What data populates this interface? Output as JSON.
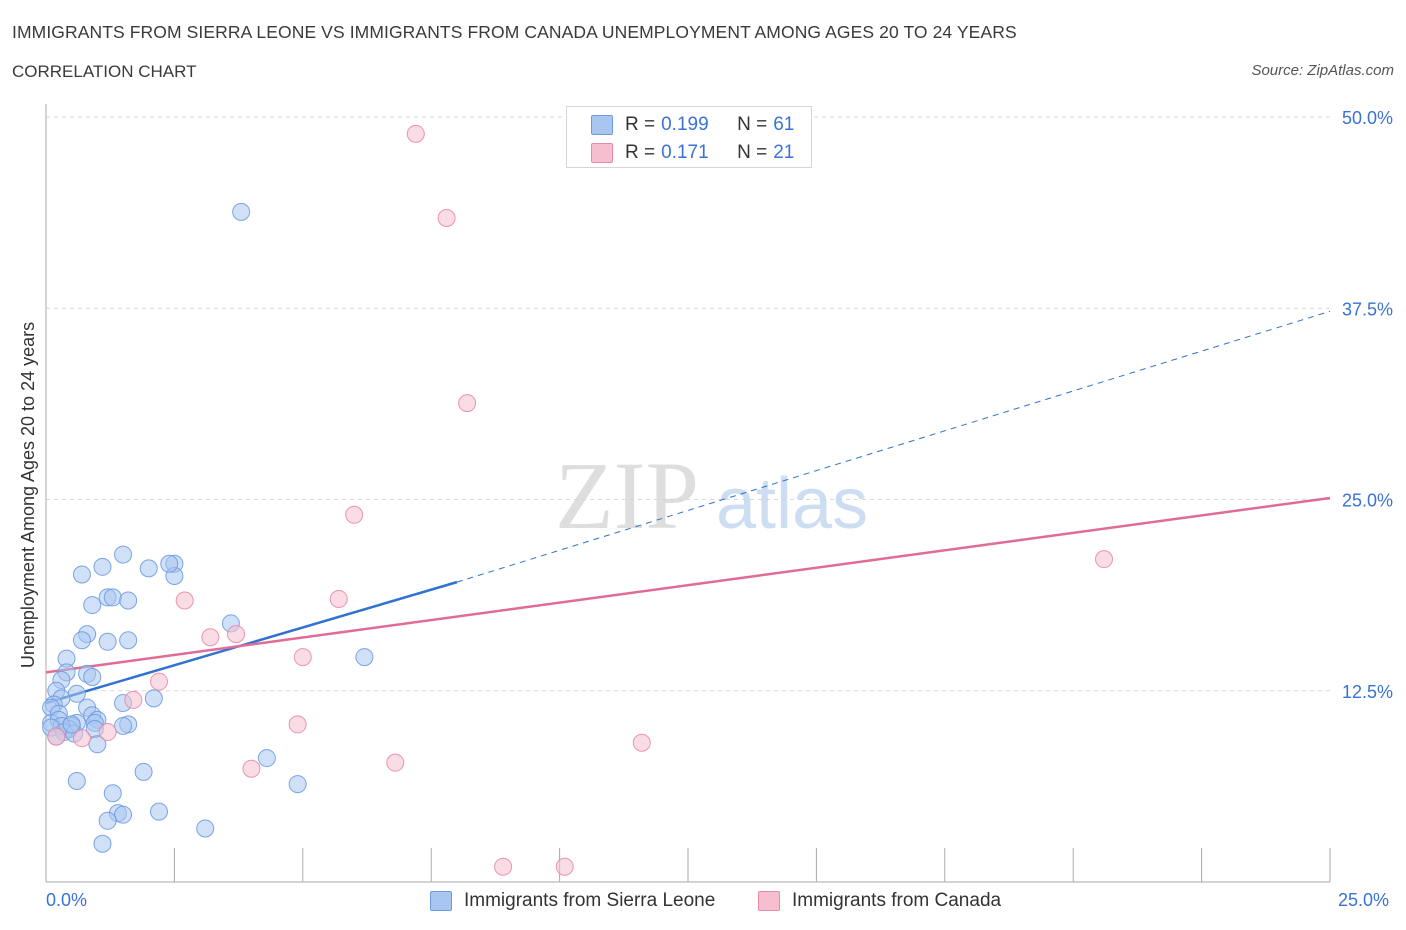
{
  "title": "IMMIGRANTS FROM SIERRA LEONE VS IMMIGRANTS FROM CANADA UNEMPLOYMENT AMONG AGES 20 TO 24 YEARS",
  "subtitle": "CORRELATION CHART",
  "source": "Source: ZipAtlas.com",
  "watermark": {
    "zip": "ZIP",
    "atlas": "atlas"
  },
  "colors": {
    "blue_fill": "#a9c6f0",
    "blue_stroke": "#6d9be0",
    "blue_line": "#2f72d0",
    "pink_fill": "#f6bfd0",
    "pink_stroke": "#e98aa8",
    "pink_line": "#e06b97",
    "axis_text": "#3a72d6",
    "grid": "#d9d9d9"
  },
  "legend_top": [
    {
      "r_label": "R =",
      "r_value": "0.199",
      "n_label": "N =",
      "n_value": "61"
    },
    {
      "r_label": "R =",
      "r_value": "0.171",
      "n_label": "N =",
      "n_value": "21"
    }
  ],
  "legend_bottom": [
    "Immigrants from Sierra Leone",
    "Immigrants from Canada"
  ],
  "chart_data": {
    "type": "scatter",
    "xlabel": "",
    "ylabel": "Unemployment Among Ages 20 to 24 years",
    "xlim": [
      0,
      25
    ],
    "ylim": [
      0,
      50
    ],
    "x_tick_labels": [
      "0.0%",
      "25.0%"
    ],
    "y_ticks": [
      12.5,
      25,
      37.5,
      50
    ],
    "y_tick_labels": [
      "12.5%",
      "25.0%",
      "37.5%",
      "50.0%"
    ],
    "grid": true,
    "legend_position": "bottom",
    "series": [
      {
        "name": "Immigrants from Sierra Leone",
        "points": [
          [
            3.8,
            43.8
          ],
          [
            1.5,
            21.4
          ],
          [
            1.1,
            20.6
          ],
          [
            0.7,
            20.1
          ],
          [
            2.0,
            20.5
          ],
          [
            2.5,
            20.8
          ],
          [
            2.5,
            20.0
          ],
          [
            2.4,
            20.8
          ],
          [
            1.2,
            18.6
          ],
          [
            1.3,
            18.6
          ],
          [
            1.6,
            18.4
          ],
          [
            0.9,
            18.1
          ],
          [
            3.6,
            16.9
          ],
          [
            0.8,
            16.2
          ],
          [
            0.7,
            15.8
          ],
          [
            1.6,
            15.8
          ],
          [
            1.2,
            15.7
          ],
          [
            6.2,
            14.7
          ],
          [
            0.4,
            14.6
          ],
          [
            0.4,
            13.7
          ],
          [
            0.8,
            13.6
          ],
          [
            0.9,
            13.4
          ],
          [
            0.3,
            13.2
          ],
          [
            0.2,
            12.5
          ],
          [
            0.6,
            12.3
          ],
          [
            0.3,
            12.0
          ],
          [
            2.1,
            12.0
          ],
          [
            1.5,
            11.7
          ],
          [
            0.15,
            11.6
          ],
          [
            0.1,
            11.4
          ],
          [
            0.8,
            11.4
          ],
          [
            0.25,
            11.0
          ],
          [
            0.9,
            10.9
          ],
          [
            0.1,
            10.4
          ],
          [
            0.6,
            10.4
          ],
          [
            0.5,
            10.2
          ],
          [
            1.0,
            10.6
          ],
          [
            1.6,
            10.3
          ],
          [
            0.45,
            10.0
          ],
          [
            0.95,
            10.4
          ],
          [
            0.25,
            10.6
          ],
          [
            0.3,
            10.2
          ],
          [
            1.5,
            10.2
          ],
          [
            0.1,
            10.1
          ],
          [
            0.35,
            9.8
          ],
          [
            0.95,
            10.0
          ],
          [
            0.2,
            9.5
          ],
          [
            0.55,
            9.7
          ],
          [
            0.5,
            10.3
          ],
          [
            1.0,
            9.0
          ],
          [
            4.3,
            8.1
          ],
          [
            1.9,
            7.2
          ],
          [
            0.6,
            6.6
          ],
          [
            4.9,
            6.4
          ],
          [
            1.3,
            5.8
          ],
          [
            2.2,
            4.6
          ],
          [
            1.4,
            4.5
          ],
          [
            1.5,
            4.4
          ],
          [
            1.2,
            4.0
          ],
          [
            3.1,
            3.5
          ],
          [
            1.1,
            2.5
          ]
        ]
      },
      {
        "name": "Immigrants from Canada",
        "points": [
          [
            7.2,
            48.9
          ],
          [
            7.8,
            43.4
          ],
          [
            8.2,
            31.3
          ],
          [
            6.0,
            24.0
          ],
          [
            20.6,
            21.1
          ],
          [
            5.7,
            18.5
          ],
          [
            2.7,
            18.4
          ],
          [
            3.7,
            16.2
          ],
          [
            3.2,
            16.0
          ],
          [
            5.0,
            14.7
          ],
          [
            2.2,
            13.1
          ],
          [
            1.7,
            11.9
          ],
          [
            4.9,
            10.3
          ],
          [
            1.2,
            9.8
          ],
          [
            0.7,
            9.4
          ],
          [
            0.2,
            9.5
          ],
          [
            11.6,
            9.1
          ],
          [
            6.8,
            7.8
          ],
          [
            4.0,
            7.4
          ],
          [
            8.9,
            1.0
          ],
          [
            10.1,
            1.0
          ]
        ]
      }
    ],
    "trend_lines": [
      {
        "series": "Immigrants from Sierra Leone",
        "solid": [
          [
            0,
            11.7
          ],
          [
            8.0,
            19.6
          ]
        ],
        "dashed": [
          [
            8.0,
            19.6
          ],
          [
            25,
            37.3
          ]
        ]
      },
      {
        "series": "Immigrants from Canada",
        "solid": [
          [
            0,
            13.7
          ],
          [
            25,
            25.1
          ]
        ]
      }
    ]
  }
}
